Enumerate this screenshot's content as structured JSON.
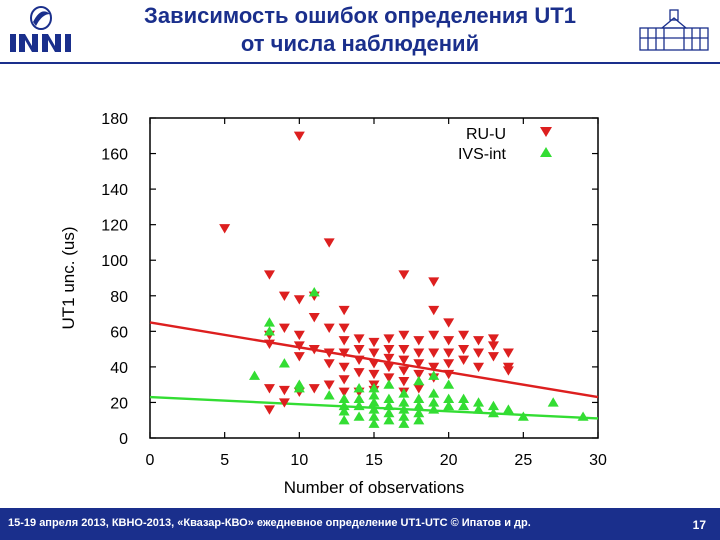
{
  "header": {
    "title_line1": "Зависимость ошибок определения UT1",
    "title_line2": "от числа наблюдений"
  },
  "footer": {
    "text": "15-19 апреля 2013, КВНО-2013, «Квазар-КВО» ежедневное определение UT1-UTC © Ипатов и др.",
    "page": "17"
  },
  "colors": {
    "brand": "#1a2f8c",
    "ru_u": "#dd1f1f",
    "ivs_int": "#33dd33"
  },
  "chart_data": {
    "type": "scatter",
    "xlabel": "Number of observations",
    "ylabel": "UT1 unc. (us)",
    "xlim": [
      0,
      30
    ],
    "ylim": [
      0,
      180
    ],
    "xticks": [
      "0",
      "5",
      "10",
      "15",
      "20",
      "25",
      "30"
    ],
    "yticks": [
      "0",
      "20",
      "40",
      "60",
      "80",
      "100",
      "120",
      "140",
      "160",
      "180"
    ],
    "legend_position": "top-right",
    "series": [
      {
        "name": "RU-U",
        "marker": "triangle-down",
        "color": "#dd1f1f",
        "points": [
          [
            5,
            118
          ],
          [
            10,
            170
          ],
          [
            12,
            110
          ],
          [
            8,
            92
          ],
          [
            9,
            80
          ],
          [
            10,
            78
          ],
          [
            11,
            80
          ],
          [
            13,
            72
          ],
          [
            8,
            58
          ],
          [
            8,
            53
          ],
          [
            9,
            62
          ],
          [
            10,
            58
          ],
          [
            10,
            52
          ],
          [
            10,
            46
          ],
          [
            11,
            68
          ],
          [
            11,
            50
          ],
          [
            12,
            62
          ],
          [
            12,
            48
          ],
          [
            12,
            42
          ],
          [
            13,
            62
          ],
          [
            13,
            55
          ],
          [
            13,
            48
          ],
          [
            13,
            40
          ],
          [
            13,
            33
          ],
          [
            13,
            26
          ],
          [
            14,
            56
          ],
          [
            14,
            50
          ],
          [
            14,
            44
          ],
          [
            14,
            37
          ],
          [
            15,
            54
          ],
          [
            15,
            48
          ],
          [
            15,
            42
          ],
          [
            15,
            36
          ],
          [
            15,
            30
          ],
          [
            15,
            27
          ],
          [
            16,
            56
          ],
          [
            16,
            50
          ],
          [
            16,
            45
          ],
          [
            16,
            40
          ],
          [
            16,
            34
          ],
          [
            17,
            92
          ],
          [
            17,
            58
          ],
          [
            17,
            50
          ],
          [
            17,
            44
          ],
          [
            17,
            38
          ],
          [
            17,
            32
          ],
          [
            18,
            55
          ],
          [
            18,
            48
          ],
          [
            18,
            42
          ],
          [
            18,
            36
          ],
          [
            18,
            28
          ],
          [
            19,
            88
          ],
          [
            19,
            72
          ],
          [
            19,
            58
          ],
          [
            19,
            48
          ],
          [
            19,
            40
          ],
          [
            19,
            34
          ],
          [
            20,
            65
          ],
          [
            20,
            55
          ],
          [
            20,
            48
          ],
          [
            20,
            42
          ],
          [
            20,
            36
          ],
          [
            21,
            58
          ],
          [
            21,
            50
          ],
          [
            21,
            44
          ],
          [
            22,
            55
          ],
          [
            22,
            48
          ],
          [
            22,
            40
          ],
          [
            23,
            56
          ],
          [
            23,
            52
          ],
          [
            23,
            46
          ],
          [
            24,
            48
          ],
          [
            24,
            40
          ],
          [
            24,
            38
          ],
          [
            8,
            28
          ],
          [
            9,
            27
          ],
          [
            9,
            20
          ],
          [
            10,
            26
          ],
          [
            8,
            16
          ],
          [
            11,
            28
          ],
          [
            12,
            30
          ],
          [
            14,
            26
          ],
          [
            17,
            26
          ]
        ]
      },
      {
        "name": "IVS-int",
        "marker": "triangle-up",
        "color": "#33dd33",
        "points": [
          [
            7,
            35
          ],
          [
            8,
            65
          ],
          [
            8,
            60
          ],
          [
            9,
            42
          ],
          [
            10,
            30
          ],
          [
            10,
            28
          ],
          [
            11,
            82
          ],
          [
            12,
            24
          ],
          [
            13,
            22
          ],
          [
            13,
            18
          ],
          [
            13,
            15
          ],
          [
            13,
            10
          ],
          [
            14,
            28
          ],
          [
            14,
            22
          ],
          [
            14,
            18
          ],
          [
            14,
            12
          ],
          [
            15,
            28
          ],
          [
            15,
            24
          ],
          [
            15,
            20
          ],
          [
            15,
            16
          ],
          [
            15,
            12
          ],
          [
            15,
            8
          ],
          [
            16,
            30
          ],
          [
            16,
            22
          ],
          [
            16,
            18
          ],
          [
            16,
            14
          ],
          [
            16,
            10
          ],
          [
            17,
            25
          ],
          [
            17,
            20
          ],
          [
            17,
            16
          ],
          [
            17,
            12
          ],
          [
            17,
            8
          ],
          [
            18,
            32
          ],
          [
            18,
            22
          ],
          [
            18,
            18
          ],
          [
            18,
            14
          ],
          [
            18,
            10
          ],
          [
            19,
            35
          ],
          [
            19,
            25
          ],
          [
            19,
            20
          ],
          [
            19,
            16
          ],
          [
            20,
            30
          ],
          [
            20,
            22
          ],
          [
            20,
            18
          ],
          [
            21,
            22
          ],
          [
            21,
            18
          ],
          [
            22,
            20
          ],
          [
            22,
            16
          ],
          [
            23,
            18
          ],
          [
            23,
            14
          ],
          [
            24,
            16
          ],
          [
            25,
            12
          ],
          [
            27,
            20
          ],
          [
            29,
            12
          ]
        ]
      }
    ],
    "fits": [
      {
        "series": "RU-U",
        "color": "#dd1f1f",
        "y_at_x0": 65,
        "y_at_x30": 23
      },
      {
        "series": "IVS-int",
        "color": "#33dd33",
        "y_at_x0": 23,
        "y_at_x30": 11
      }
    ]
  }
}
